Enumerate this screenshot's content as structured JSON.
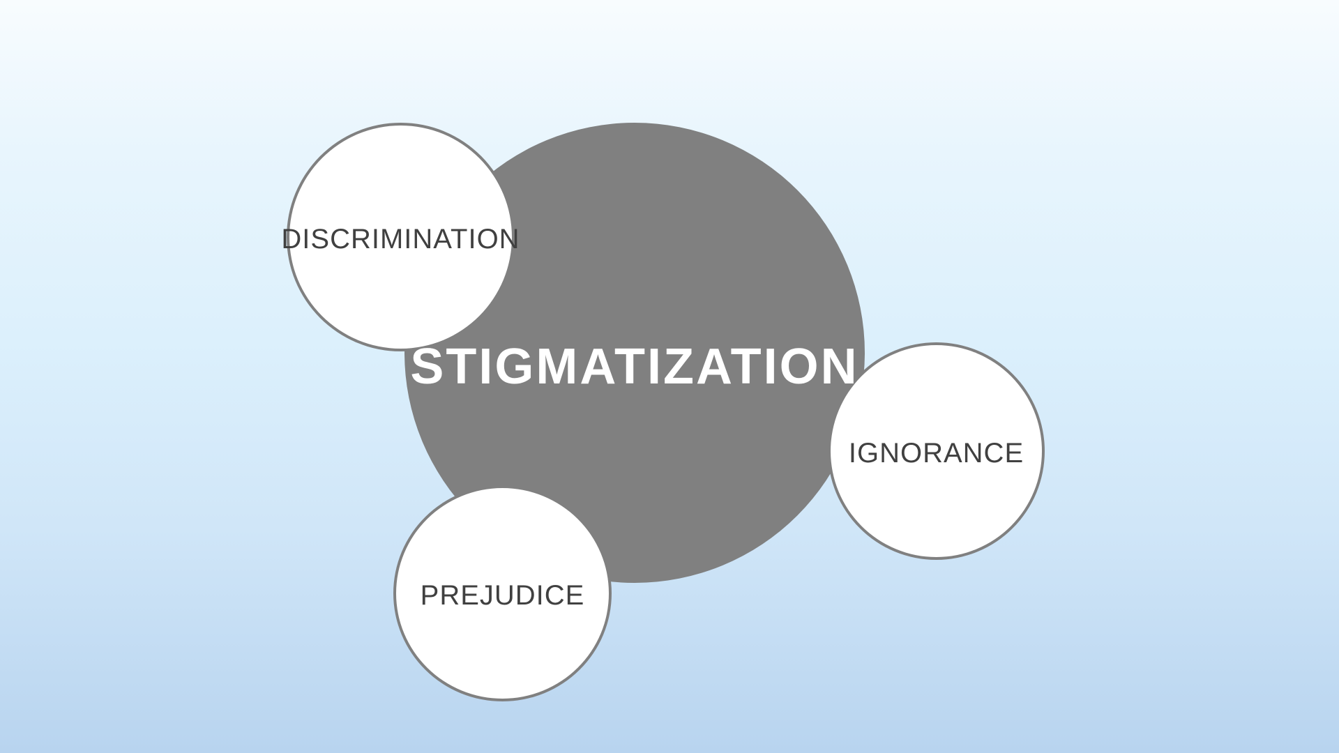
{
  "diagram": {
    "center": {
      "label": "STIGMATIZATION",
      "fill_color": "#808080",
      "text_color": "#ffffff"
    },
    "satellites": [
      {
        "label": "DISCRIMINATION"
      },
      {
        "label": "IGNORANCE"
      },
      {
        "label": "PREJUDICE"
      }
    ],
    "satellite_fill": "#ffffff",
    "satellite_border": "#808080",
    "satellite_text_color": "#404040"
  }
}
